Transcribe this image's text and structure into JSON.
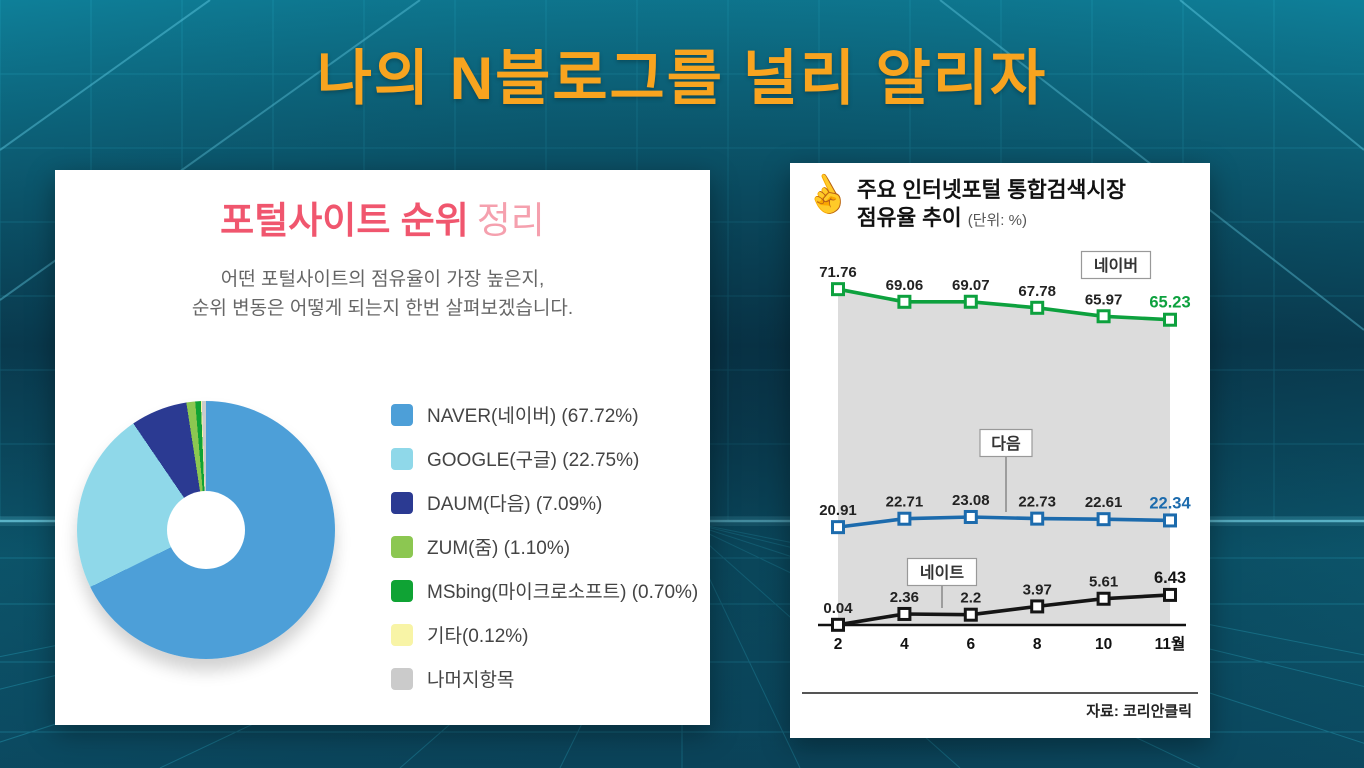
{
  "slide": {
    "title": "나의 N블로그를 널리 알리자"
  },
  "left_panel": {
    "title_main": "포털사이트 순위",
    "title_sub": "정리",
    "description": [
      "어떤 포털사이트의 점유율이 가장 높은지,",
      "순위 변동은 어떻게 되는지 한번 살펴보겠습니다."
    ]
  },
  "right_panel": {
    "hand_icon": "☝",
    "title_line1": "주요 인터넷포털 통합검색시장",
    "title_line2": "점유율 추이",
    "unit_label": "(단위: %)",
    "source": "자료: 코리안클릭"
  },
  "colors": {
    "accent_orange": "#f8a41f",
    "title_pink": "#f0566e",
    "title_pink_light": "#f5a0ae"
  },
  "chart_data": [
    {
      "type": "pie",
      "donut": true,
      "title": "포털사이트 순위 정리",
      "legend_position": "right",
      "slices": [
        {
          "label": "NAVER(네이버) (67.72%)",
          "value": 67.72,
          "color": "#4d9fd8"
        },
        {
          "label": "GOOGLE(구글) (22.75%)",
          "value": 22.75,
          "color": "#8fd8e9"
        },
        {
          "label": "DAUM(다음) (7.09%)",
          "value": 7.09,
          "color": "#2b3a92"
        },
        {
          "label": "ZUM(줌) (1.10%)",
          "value": 1.1,
          "color": "#8cc751"
        },
        {
          "label": "MSbing(마이크로소프트) (0.70%)",
          "value": 0.7,
          "color": "#0fa334"
        },
        {
          "label": "기타(0.12%)",
          "value": 0.12,
          "color": "#f8f4a6"
        },
        {
          "label": "나머지항목",
          "value": null,
          "color": "#cbcbcb"
        }
      ]
    },
    {
      "type": "line",
      "title": "주요 인터넷포털 통합검색시장 점유율 추이",
      "unit": "%",
      "x": [
        "2",
        "4",
        "6",
        "8",
        "10",
        "11월"
      ],
      "series": [
        {
          "name": "네이버",
          "color": "#0da13e",
          "values": [
            71.76,
            69.06,
            69.07,
            67.78,
            65.97,
            65.23
          ],
          "area": true
        },
        {
          "name": "다음",
          "color": "#1c6bad",
          "values": [
            20.91,
            22.71,
            23.08,
            22.73,
            22.61,
            22.34
          ]
        },
        {
          "name": "네이트",
          "color": "#151515",
          "values": [
            0.04,
            2.36,
            2.2,
            3.97,
            5.61,
            6.43
          ]
        }
      ],
      "area_fill": "#dcdcdc",
      "ylim": [
        0,
        80
      ],
      "grid": false,
      "source": "자료: 코리안클릭"
    }
  ]
}
